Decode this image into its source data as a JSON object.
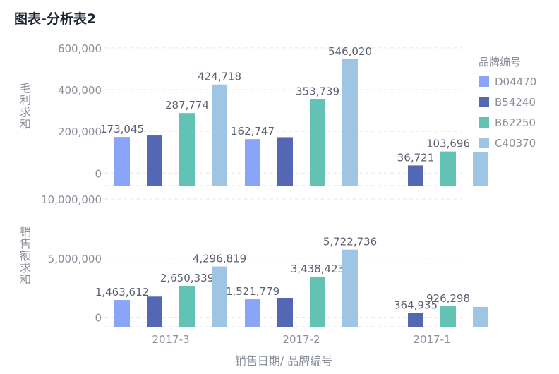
{
  "page": {
    "title": "图表-分析表2"
  },
  "chart_data": [
    {
      "type": "bar",
      "ylabel": "毛利求和",
      "categories": [
        "2017-3",
        "2017-2",
        "2017-1"
      ],
      "yticks": [
        0,
        200000,
        400000,
        600000
      ],
      "ytick_labels": [
        "0",
        "200,000",
        "400,000",
        "600,000"
      ],
      "ylim": [
        -60000,
        620000
      ],
      "series": [
        {
          "name": "D04470",
          "values": [
            173045,
            162747,
            null
          ],
          "labels": [
            "173,045",
            "162,747",
            ""
          ]
        },
        {
          "name": "B54240",
          "values": [
            180000,
            172000,
            36721
          ],
          "labels": [
            "",
            "",
            "36,721"
          ]
        },
        {
          "name": "B62250",
          "values": [
            287774,
            353739,
            103696
          ],
          "labels": [
            "287,774",
            "353,739",
            "103,696"
          ]
        },
        {
          "name": "C40370",
          "values": [
            424718,
            546020,
            100000
          ],
          "labels": [
            "424,718",
            "546,020",
            ""
          ]
        }
      ]
    },
    {
      "type": "bar",
      "ylabel": "销售额求和",
      "categories": [
        "2017-3",
        "2017-2",
        "2017-1"
      ],
      "yticks": [
        0,
        5000000,
        10000000
      ],
      "ytick_labels": [
        "0",
        "5,000,000",
        "10,000,000"
      ],
      "ylim": [
        -800000,
        10000000
      ],
      "series": [
        {
          "name": "D04470",
          "values": [
            1463612,
            1521779,
            null
          ],
          "labels": [
            "1,463,612",
            "1,521,779",
            ""
          ]
        },
        {
          "name": "B54240",
          "values": [
            1750000,
            1600000,
            364935
          ],
          "labels": [
            "",
            "",
            "364,935"
          ]
        },
        {
          "name": "B62250",
          "values": [
            2650339,
            3438423,
            926298
          ],
          "labels": [
            "2,650,339",
            "3,438,423",
            "926,298"
          ]
        },
        {
          "name": "C40370",
          "values": [
            4296819,
            5722736,
            880000
          ],
          "labels": [
            "4,296,819",
            "5,722,736",
            ""
          ]
        }
      ]
    }
  ],
  "xlabel": "销售日期/ 品牌编号",
  "legend": {
    "title": "品牌编号",
    "position": "right",
    "items": [
      {
        "name": "D04470",
        "color": "#8aa4f7"
      },
      {
        "name": "B54240",
        "color": "#5367b4"
      },
      {
        "name": "B62250",
        "color": "#62c3b5"
      },
      {
        "name": "C40370",
        "color": "#9ec6e4"
      }
    ]
  }
}
